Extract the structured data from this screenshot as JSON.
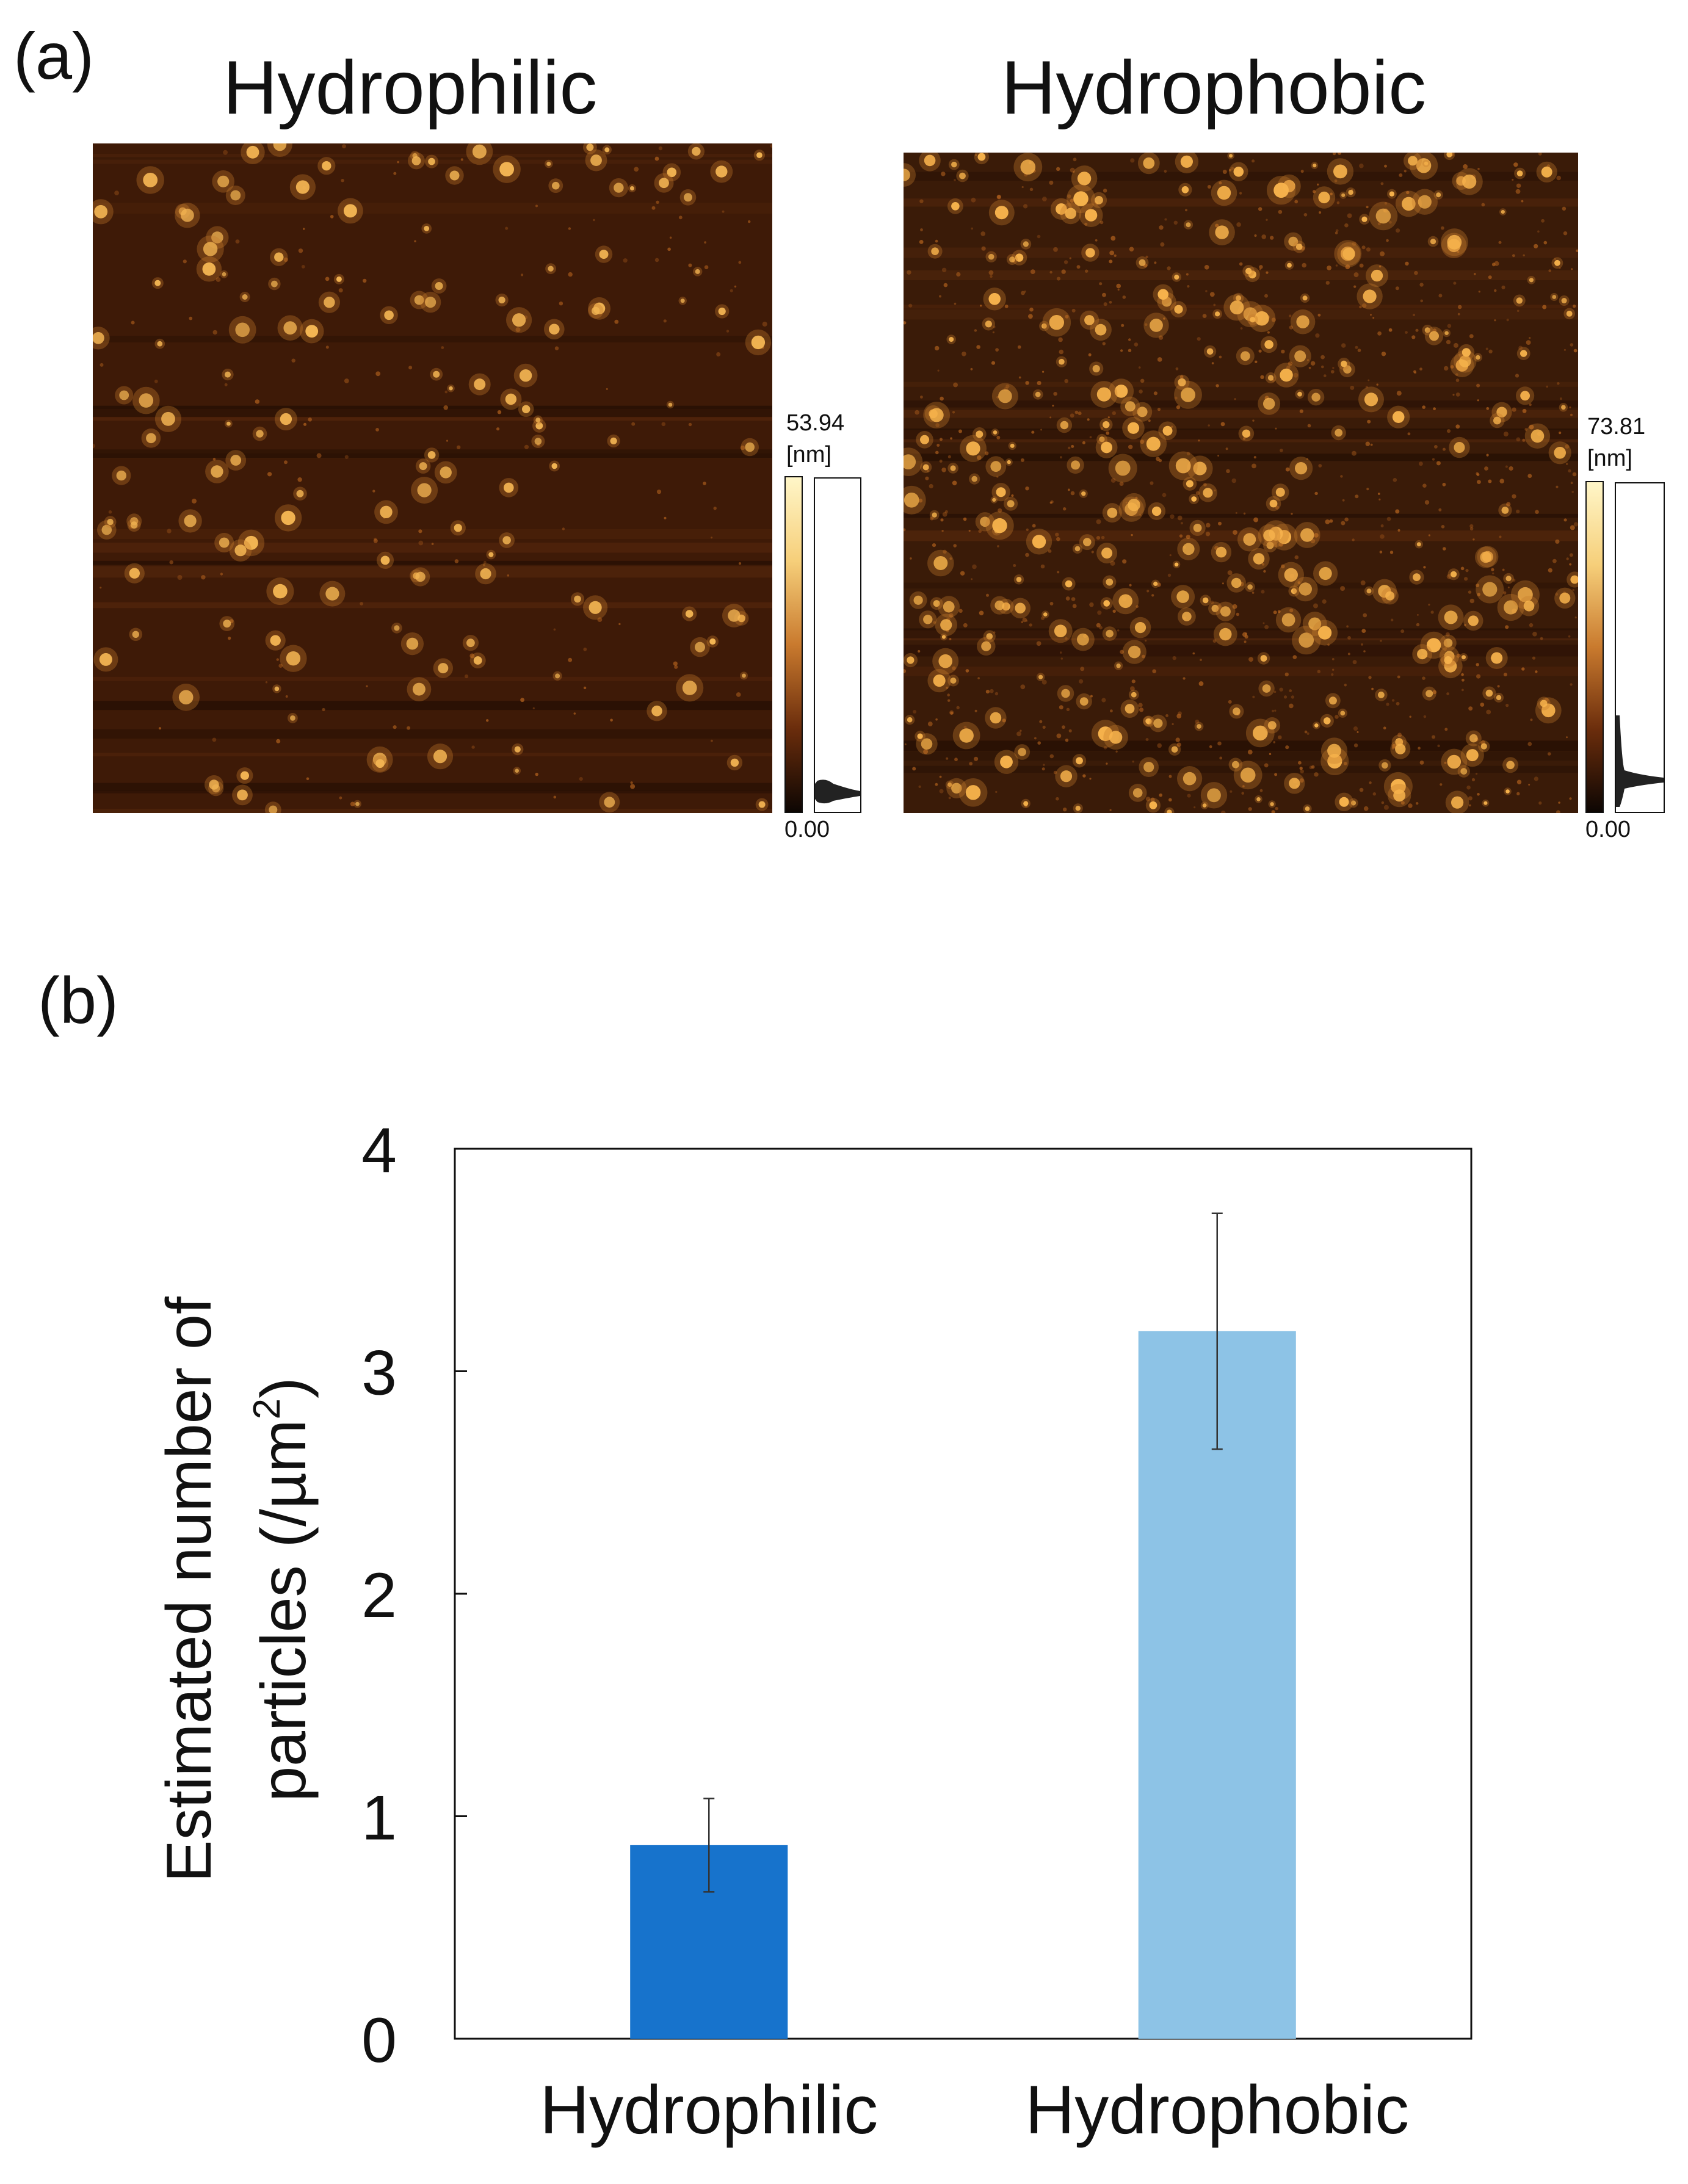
{
  "panel_a": {
    "label": "(a)",
    "images": [
      {
        "title": "Hydrophilic",
        "colorbar_max": "53.94",
        "colorbar_unit": "[nm]",
        "colorbar_min": "0.00",
        "bg_color": "#3e1a07",
        "particle_color": "#f3b553"
      },
      {
        "title": "Hydrophobic",
        "colorbar_max": "73.81",
        "colorbar_unit": "[nm]",
        "colorbar_min": "0.00",
        "bg_color": "#3a1b08",
        "particle_color": "#f7b34c"
      }
    ]
  },
  "panel_b": {
    "label": "(b)"
  },
  "chart_data": {
    "type": "bar",
    "categories": [
      "Hydrophilic",
      "Hydrophobic"
    ],
    "values": [
      0.87,
      3.18
    ],
    "errors": [
      0.21,
      0.53
    ],
    "colors": [
      "#1773cc",
      "#8dc3e6"
    ],
    "ylabel_line1": "Estimated number of",
    "ylabel_line2_pre": "particles (/µm",
    "ylabel_line2_sup": "2",
    "ylabel_line2_post": ")",
    "ylim": [
      0,
      4
    ],
    "yticks": [
      "0",
      "1",
      "2",
      "3",
      "4"
    ],
    "grid": false
  }
}
